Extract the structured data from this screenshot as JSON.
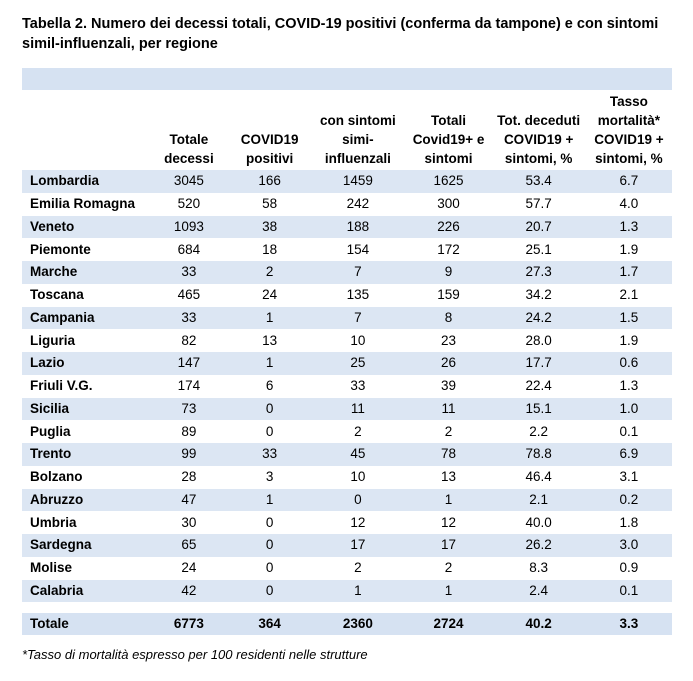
{
  "title": "Tabella 2. Numero dei decessi totali, COVID-19 positivi (conferma da tampone) e con sintomi simil-influenzali, per regione",
  "headers": [
    "",
    "Totale decessi",
    "COVID19 positivi",
    "con sintomi simi-influenzali",
    "Totali Covid19+ e sintomi",
    "Tot. deceduti COVID19 + sintomi, %",
    "Tasso mortalità* COVID19 + sintomi, %"
  ],
  "rows": [
    [
      "Lombardia",
      "3045",
      "166",
      "1459",
      "1625",
      "53.4",
      "6.7"
    ],
    [
      "Emilia Romagna",
      "520",
      "58",
      "242",
      "300",
      "57.7",
      "4.0"
    ],
    [
      "Veneto",
      "1093",
      "38",
      "188",
      "226",
      "20.7",
      "1.3"
    ],
    [
      "Piemonte",
      "684",
      "18",
      "154",
      "172",
      "25.1",
      "1.9"
    ],
    [
      "Marche",
      "33",
      "2",
      "7",
      "9",
      "27.3",
      "1.7"
    ],
    [
      "Toscana",
      "465",
      "24",
      "135",
      "159",
      "34.2",
      "2.1"
    ],
    [
      "Campania",
      "33",
      "1",
      "7",
      "8",
      "24.2",
      "1.5"
    ],
    [
      "Liguria",
      "82",
      "13",
      "10",
      "23",
      "28.0",
      "1.9"
    ],
    [
      "Lazio",
      "147",
      "1",
      "25",
      "26",
      "17.7",
      "0.6"
    ],
    [
      "Friuli V.G.",
      "174",
      "6",
      "33",
      "39",
      "22.4",
      "1.3"
    ],
    [
      "Sicilia",
      "73",
      "0",
      "11",
      "11",
      "15.1",
      "1.0"
    ],
    [
      "Puglia",
      "89",
      "0",
      "2",
      "2",
      "2.2",
      "0.1"
    ],
    [
      "Trento",
      "99",
      "33",
      "45",
      "78",
      "78.8",
      "6.9"
    ],
    [
      "Bolzano",
      "28",
      "3",
      "10",
      "13",
      "46.4",
      "3.1"
    ],
    [
      "Abruzzo",
      "47",
      "1",
      "0",
      "1",
      "2.1",
      "0.2"
    ],
    [
      "Umbria",
      "30",
      "0",
      "12",
      "12",
      "40.0",
      "1.8"
    ],
    [
      "Sardegna",
      "65",
      "0",
      "17",
      "17",
      "26.2",
      "3.0"
    ],
    [
      "Molise",
      "24",
      "0",
      "2",
      "2",
      "8.3",
      "0.9"
    ],
    [
      "Calabria",
      "42",
      "0",
      "1",
      "1",
      "2.4",
      "0.1"
    ]
  ],
  "total": [
    "Totale",
    "6773",
    "364",
    "2360",
    "2724",
    "40.2",
    "3.3"
  ],
  "footnote": "*Tasso di mortalità espresso per 100 residenti nelle strutture"
}
